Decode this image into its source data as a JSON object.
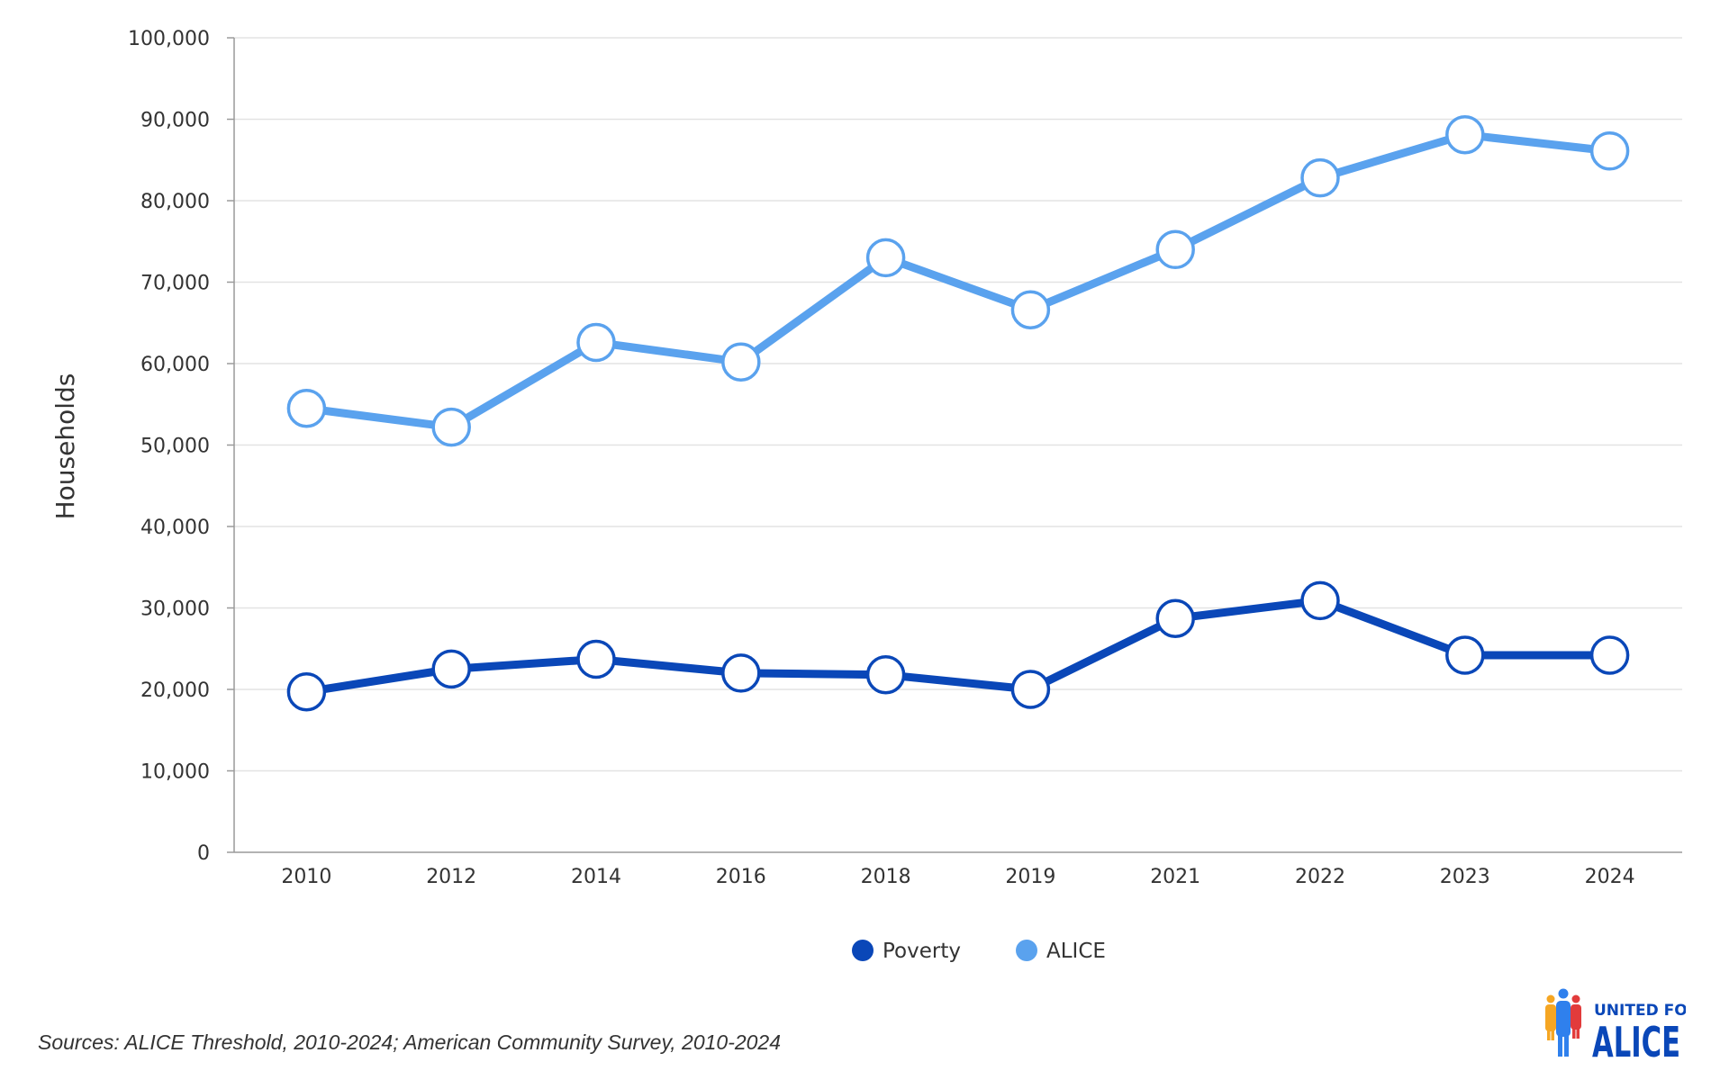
{
  "chart_data": {
    "type": "line",
    "title": "",
    "xlabel": "",
    "ylabel": "Households",
    "categories": [
      "2010",
      "2012",
      "2014",
      "2016",
      "2018",
      "2019",
      "2021",
      "2022",
      "2023",
      "2024"
    ],
    "ylim": [
      0,
      100000
    ],
    "yticks": [
      0,
      10000,
      20000,
      30000,
      40000,
      50000,
      60000,
      70000,
      80000,
      90000,
      100000
    ],
    "ytick_labels": [
      "0",
      "10,000",
      "20,000",
      "30,000",
      "40,000",
      "50,000",
      "60,000",
      "70,000",
      "80,000",
      "90,000",
      "100,000"
    ],
    "grid": true,
    "legend_position": "bottom-center",
    "series": [
      {
        "name": "Poverty",
        "color": "#0a47b8",
        "values": [
          19700,
          22500,
          23700,
          22000,
          21800,
          20000,
          28700,
          30900,
          24200,
          24200
        ]
      },
      {
        "name": "ALICE",
        "color": "#5aa2ee",
        "values": [
          54500,
          52200,
          62600,
          60200,
          73000,
          66600,
          74000,
          82800,
          88100,
          86100
        ]
      }
    ]
  },
  "source_note": "Sources: ALICE Threshold, 2010-2024; American Community Survey, 2010-2024",
  "logo": {
    "text_line1": "UNITED FOR",
    "text_line2": "ALICE",
    "color": "#0a47b8"
  }
}
